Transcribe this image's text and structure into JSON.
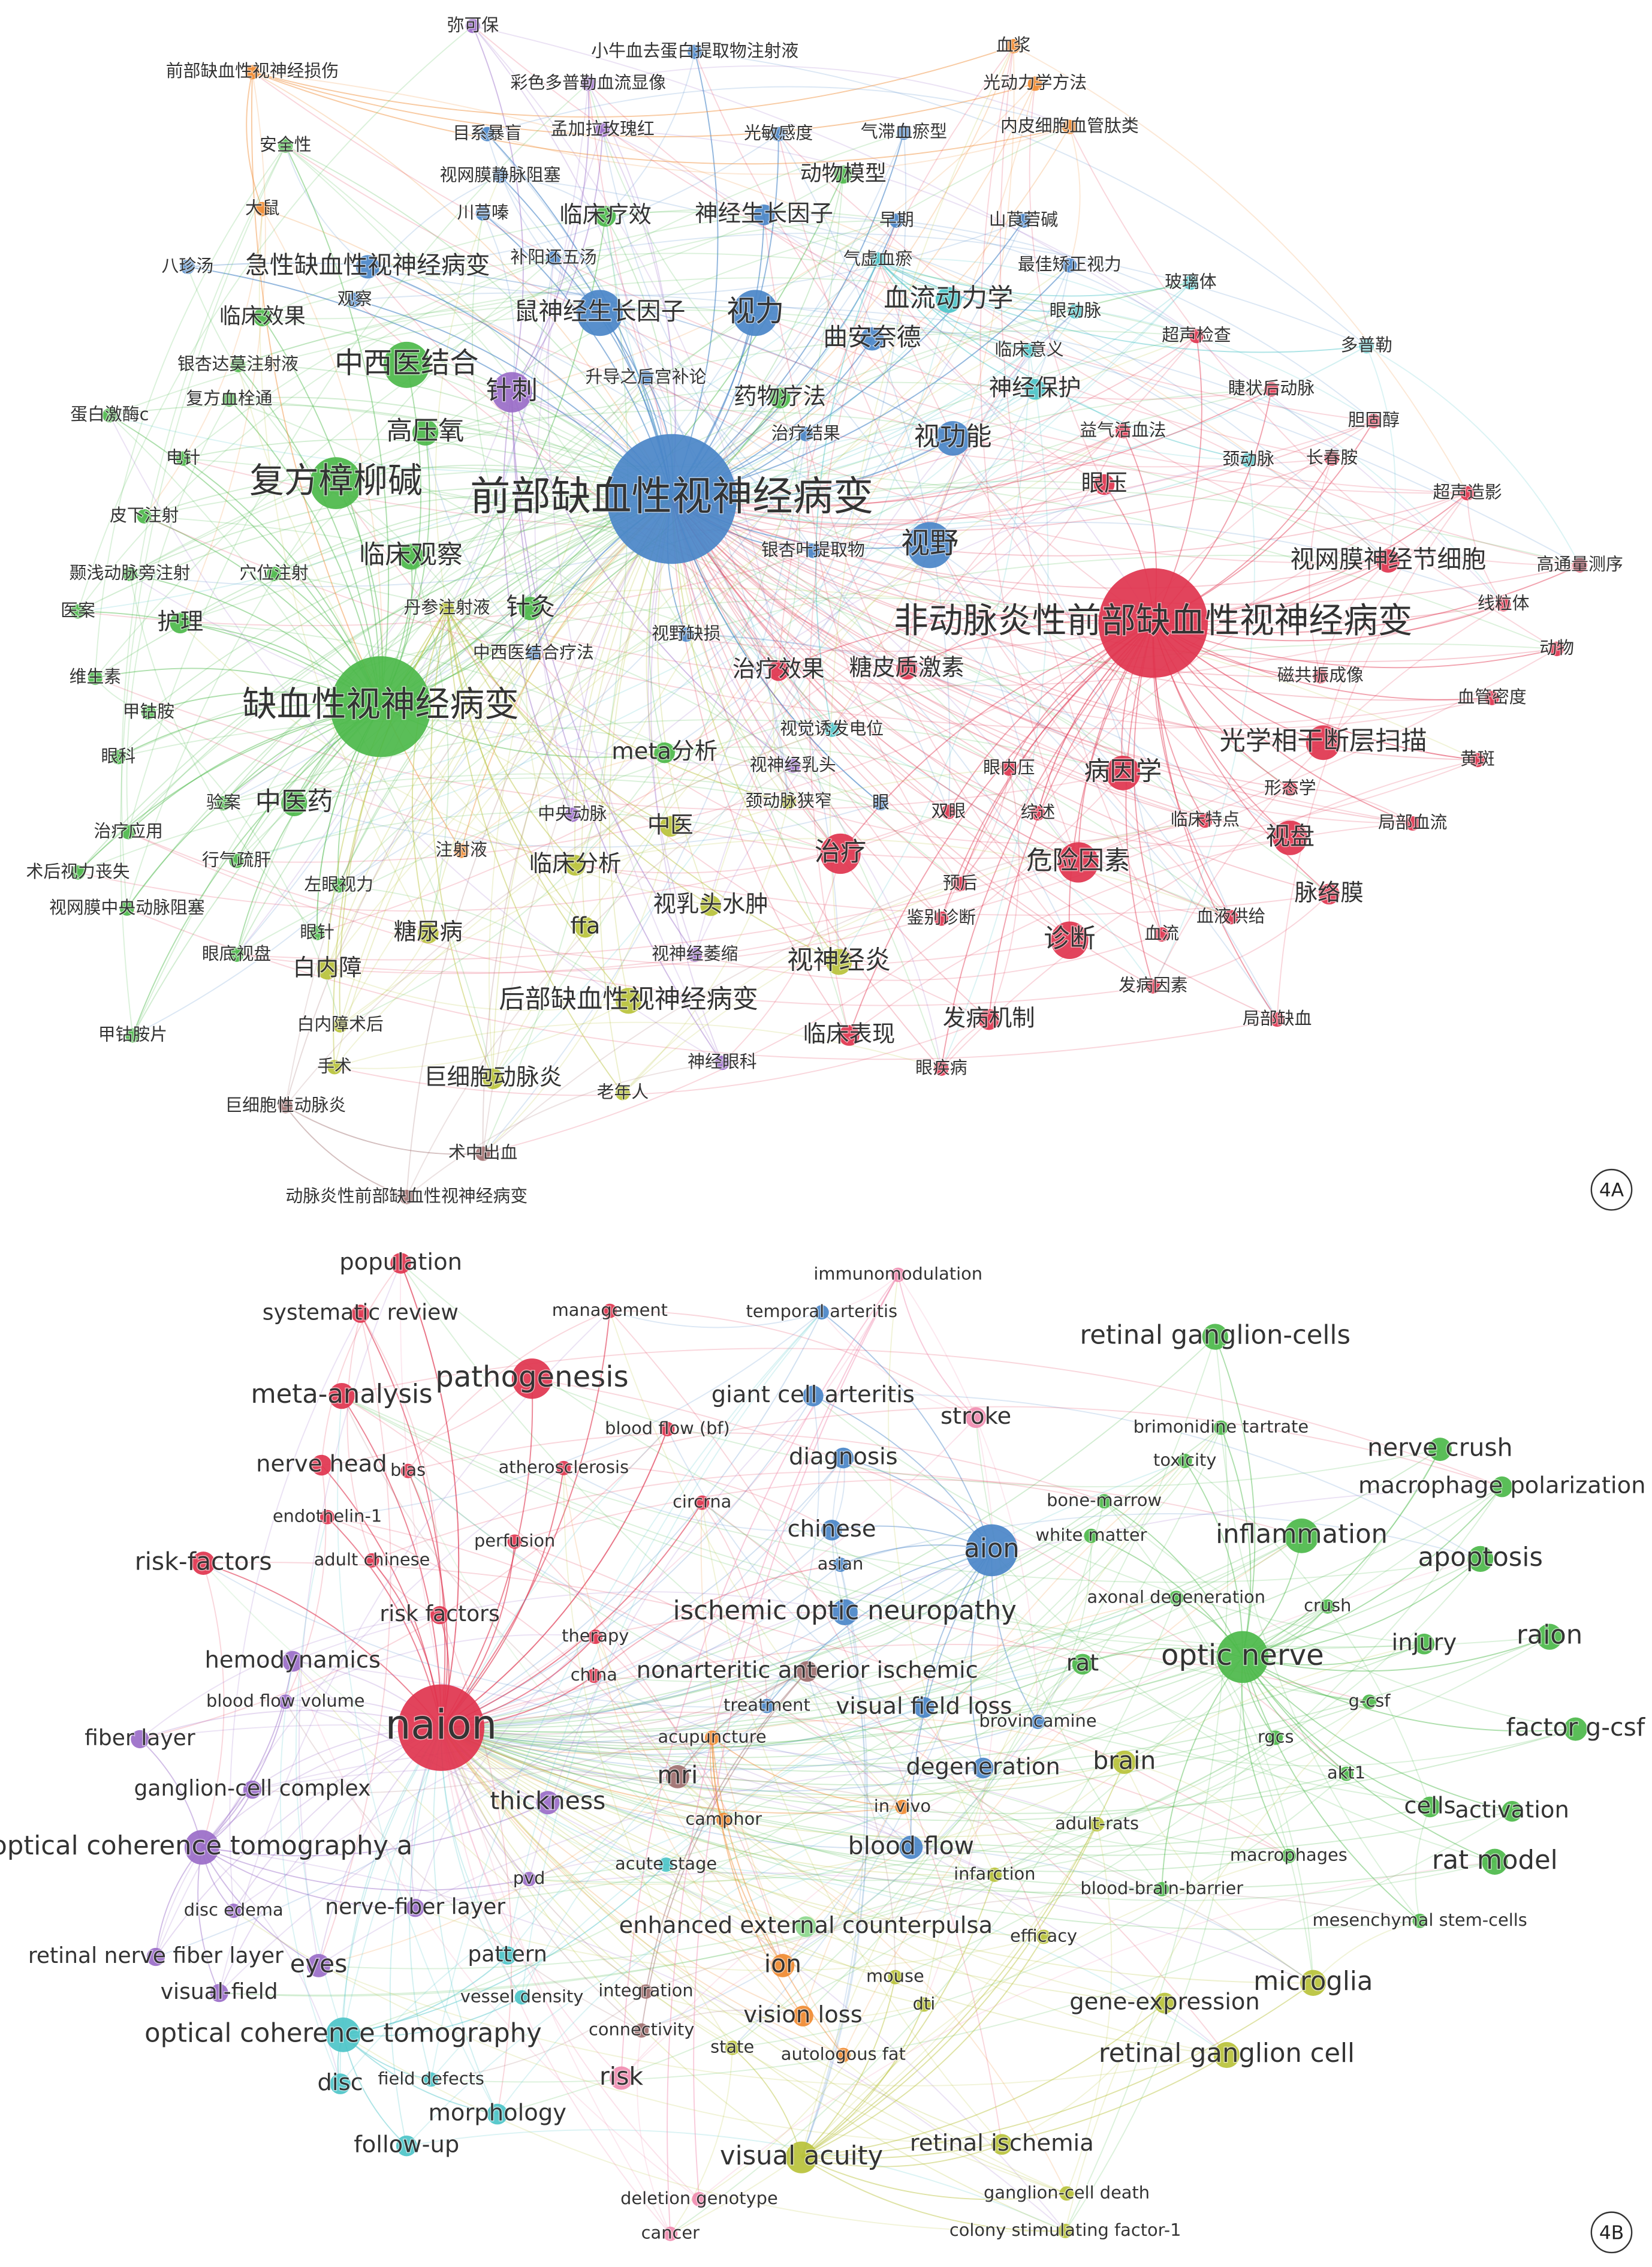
{
  "panels": [
    {
      "badge": "4A",
      "labels": [
        "弥可保",
        "小牛血去蛋白提取物注射液",
        "前部缺血性视神经损伤",
        "彩色多普勒血流显像",
        "血浆",
        "光动力学方法",
        "目系暴盲",
        "孟加拉玫瑰红",
        "光敏感度",
        "气滞血瘀型",
        "内皮细胞血管肽类",
        "安全性",
        "视网膜静脉阻塞",
        "动物模型",
        "大鼠",
        "川芎嗪",
        "临床疗效",
        "神经生长因子",
        "早期",
        "山莨菪碱",
        "八珍汤",
        "急性缺血性视神经病变",
        "补阳还五汤",
        "气虚血瘀",
        "最佳矫正视力",
        "玻璃体",
        "临床效果",
        "观察",
        "鼠神经生长因子",
        "视力",
        "血流动力学",
        "眼动脉",
        "超声检查",
        "多普勒",
        "银杏达莫注射液",
        "中西医结合",
        "曲安奈德",
        "临床意义",
        "升导之后宫补论",
        "针刺",
        "药物疗法",
        "神经保护",
        "睫状后动脉",
        "复方血栓通",
        "蛋白激酶c",
        "胆固醇",
        "高压氧",
        "治疗结果",
        "视功能",
        "益气活血法",
        "电针",
        "颈动脉",
        "长春胺",
        "复方樟柳碱",
        "前部缺血性视神经病变",
        "视野",
        "眼压",
        "超声造影",
        "皮下注射",
        "临床观察",
        "银杏叶提取物",
        "视网膜神经节细胞",
        "高通量测序",
        "颞浅动脉旁注射",
        "穴位注射",
        "医案",
        "丹参注射液",
        "针灸",
        "线粒体",
        "非动脉炎性前部缺血性视神经病变",
        "护理",
        "中西医结合疗法",
        "视野缺损",
        "糖皮质激素",
        "动物",
        "维生素",
        "缺血性视神经病变",
        "治疗效果",
        "磁共振成像",
        "甲钴胺",
        "血管密度",
        "视觉诱发电位",
        "眼科",
        "meta分析",
        "视神经乳头",
        "光学相干断层扫描",
        "黄斑",
        "眼内压",
        "病因学",
        "验案",
        "中医药",
        "颈动脉狭窄",
        "眼",
        "双眼",
        "综述",
        "形态学",
        "中央动脉",
        "中医",
        "临床特点",
        "视盘",
        "局部血流",
        "治疗应用",
        "治疗",
        "危险因素",
        "术后视力丧失",
        "行气疏肝",
        "左眼视力",
        "注射液",
        "临床分析",
        "预后",
        "脉络膜",
        "视网膜中央动脉阻塞",
        "ffa",
        "视乳头水肿",
        "鉴别诊断",
        "血液供给",
        "眼针",
        "糖尿病",
        "视神经萎缩",
        "视神经炎",
        "诊断",
        "血流",
        "眼底视盘",
        "白内障",
        "发病因素",
        "白内障术后",
        "后部缺血性视神经病变",
        "发病机制",
        "局部缺血",
        "甲钴胺片",
        "临床表现",
        "手术",
        "巨细胞动脉炎",
        "神经眼科",
        "眼疾病",
        "老年人",
        "巨细胞性动脉炎",
        "术中出血",
        "动脉炎性前部缺血性视神经病变"
      ]
    },
    {
      "badge": "4B",
      "labels": [
        "population",
        "immunomodulation",
        "systematic review",
        "management",
        "temporal arteritis",
        "retinal ganglion-cells",
        "pathogenesis",
        "meta-analysis",
        "giant cell arteritis",
        "stroke",
        "blood flow (bf)",
        "brimonidine tartrate",
        "nerve head",
        "bias",
        "atherosclerosis",
        "diagnosis",
        "toxicity",
        "nerve crush",
        "endothelin-1",
        "circrna",
        "macrophage polarization",
        "bone-marrow",
        "chinese",
        "inflammation",
        "perfusion",
        "white matter",
        "risk-factors",
        "adult chinese",
        "asian",
        "aion",
        "apoptosis",
        "axonal degeneration",
        "crush",
        "ischemic optic neuropathy",
        "risk factors",
        "raion",
        "therapy",
        "injury",
        "hemodynamics",
        "china",
        "nonarteritic anterior ischemic",
        "rat",
        "optic nerve",
        "blood flow volume",
        "naion",
        "treatment",
        "visual field loss",
        "g-csf",
        "brovincamine",
        "factor g-csf",
        "fiber layer",
        "rgcs",
        "brain",
        "acupuncture",
        "akt1",
        "degeneration",
        "ganglion-cell complex",
        "thickness",
        "mri",
        "cells",
        "in vivo",
        "activation",
        "camphor",
        "adult-rats",
        "optical coherence tomography a",
        "macrophages",
        "blood flow",
        "rat model",
        "acute stage",
        "infarction",
        "pvd",
        "blood-brain-barrier",
        "disc edema",
        "nerve-fiber layer",
        "mesenchymal stem-cells",
        "enhanced external counterpulsa",
        "efficacy",
        "retinal nerve fiber layer",
        "eyes",
        "pattern",
        "ion",
        "mouse",
        "microglia",
        "integration",
        "vessel density",
        "visual-field",
        "dti",
        "gene-expression",
        "vision loss",
        "optical coherence tomography",
        "connectivity",
        "state",
        "autologous fat",
        "retinal ganglion cell",
        "risk",
        "disc",
        "field defects",
        "morphology",
        "follow-up",
        "visual acuity",
        "retinal ischemia",
        "ganglion-cell death",
        "deletion genotype",
        "colony stimulating factor-1",
        "cancer"
      ]
    }
  ]
}
